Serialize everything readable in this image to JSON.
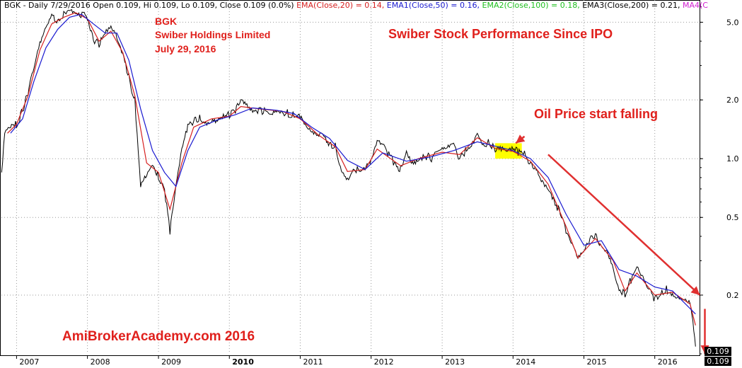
{
  "header": {
    "prefix": "BGK - Daily 7/29/2016 Open 0.109, Hi 0.109, Lo 0.109, Close 0.109 (0.0%)",
    "ema20": "EMA(Close,20) = 0.14,",
    "ema50": "EMA1(Close,50) = 0.16,",
    "ema100": "EMA2(Close,100) = 0.18,",
    "ema200": "EMA3(Close,200) = 0.21,",
    "ma": "MA4(C",
    "colors": {
      "ema20": "#d62020",
      "ema50": "#1a1ad0",
      "ema100": "#20c020",
      "ema200": "#000000",
      "ma": "#d020d0"
    }
  },
  "labels": {
    "ticker": "BGK",
    "company": "Swiber Holdings Limited",
    "date": "July 29, 2016",
    "title": "Swiber Stock Performance Since IPO",
    "annotation": "Oil Price start falling",
    "watermark": "AmiBrokerAcademy.com  2016"
  },
  "last_price": [
    "0.109",
    "0.109"
  ],
  "chart_data": {
    "type": "line",
    "title": "Swiber Stock Performance Since IPO",
    "y_scale": "log",
    "ylim": [
      0.1,
      6.5
    ],
    "y_ticks": [
      {
        "value": 0.2,
        "label": "0.2"
      },
      {
        "value": 0.5,
        "label": "0.5"
      },
      {
        "value": 1.0,
        "label": "1.0"
      },
      {
        "value": 2.0,
        "label": "2.0"
      },
      {
        "value": 5.0,
        "label": "5.0"
      }
    ],
    "xlim": [
      "2006-10-15",
      "2016-08-15"
    ],
    "x_ticks": [
      "2007",
      "2008",
      "2009",
      "2010",
      "2011",
      "2012",
      "2013",
      "2014",
      "2015",
      "2016"
    ],
    "grid": true,
    "highlight": {
      "start": "2013-10-01",
      "end": "2014-02-15",
      "color": "#ffff00"
    },
    "series": [
      {
        "role": "price",
        "color": "#000000",
        "points": [
          [
            "2006-10-16",
            0.85
          ],
          [
            "2006-11-01",
            1.4
          ],
          [
            "2006-12-01",
            1.5
          ],
          [
            "2007-01-01",
            1.5
          ],
          [
            "2007-02-01",
            1.75
          ],
          [
            "2007-03-01",
            2.2
          ],
          [
            "2007-04-01",
            2.9
          ],
          [
            "2007-05-01",
            3.8
          ],
          [
            "2007-06-01",
            4.6
          ],
          [
            "2007-07-01",
            5.3
          ],
          [
            "2007-08-01",
            5.0
          ],
          [
            "2007-09-01",
            5.6
          ],
          [
            "2007-10-01",
            6.0
          ],
          [
            "2007-11-01",
            5.7
          ],
          [
            "2008-01-01",
            5.3
          ],
          [
            "2008-02-01",
            4.1
          ],
          [
            "2008-03-01",
            3.9
          ],
          [
            "2008-04-01",
            4.3
          ],
          [
            "2008-05-01",
            4.7
          ],
          [
            "2008-06-01",
            4.1
          ],
          [
            "2008-07-01",
            3.3
          ],
          [
            "2008-08-01",
            2.6
          ],
          [
            "2008-09-01",
            2.0
          ],
          [
            "2008-10-01",
            0.75
          ],
          [
            "2008-11-01",
            0.85
          ],
          [
            "2008-12-01",
            0.95
          ],
          [
            "2009-01-01",
            0.8
          ],
          [
            "2009-02-01",
            0.7
          ],
          [
            "2009-03-01",
            0.42
          ],
          [
            "2009-04-01",
            0.7
          ],
          [
            "2009-05-01",
            1.1
          ],
          [
            "2009-06-01",
            1.45
          ],
          [
            "2009-07-01",
            1.55
          ],
          [
            "2009-08-01",
            1.6
          ],
          [
            "2009-09-01",
            1.55
          ],
          [
            "2009-10-01",
            1.6
          ],
          [
            "2009-11-01",
            1.6
          ],
          [
            "2009-12-01",
            1.7
          ],
          [
            "2010-01-01",
            1.65
          ],
          [
            "2010-02-01",
            1.75
          ],
          [
            "2010-03-01",
            1.95
          ],
          [
            "2010-04-01",
            1.85
          ],
          [
            "2010-05-01",
            1.7
          ],
          [
            "2010-06-01",
            1.8
          ],
          [
            "2010-07-01",
            1.75
          ],
          [
            "2010-08-01",
            1.75
          ],
          [
            "2010-09-01",
            1.8
          ],
          [
            "2010-10-01",
            1.75
          ],
          [
            "2010-11-01",
            1.7
          ],
          [
            "2010-12-01",
            1.65
          ],
          [
            "2011-01-01",
            1.6
          ],
          [
            "2011-02-01",
            1.45
          ],
          [
            "2011-03-01",
            1.35
          ],
          [
            "2011-04-01",
            1.3
          ],
          [
            "2011-05-01",
            1.3
          ],
          [
            "2011-06-01",
            1.2
          ],
          [
            "2011-07-01",
            1.15
          ],
          [
            "2011-08-01",
            0.9
          ],
          [
            "2011-09-01",
            0.8
          ],
          [
            "2011-10-01",
            0.9
          ],
          [
            "2011-11-01",
            0.87
          ],
          [
            "2011-12-01",
            0.88
          ],
          [
            "2012-01-01",
            0.95
          ],
          [
            "2012-02-01",
            1.2
          ],
          [
            "2012-03-01",
            1.15
          ],
          [
            "2012-04-01",
            1.05
          ],
          [
            "2012-05-01",
            0.95
          ],
          [
            "2012-06-01",
            0.88
          ],
          [
            "2012-07-01",
            1.1
          ],
          [
            "2012-08-01",
            0.97
          ],
          [
            "2012-09-01",
            1.0
          ],
          [
            "2012-10-01",
            1.05
          ],
          [
            "2012-11-01",
            1.0
          ],
          [
            "2012-12-01",
            1.05
          ],
          [
            "2013-01-01",
            1.1
          ],
          [
            "2013-02-01",
            1.12
          ],
          [
            "2013-03-01",
            1.15
          ],
          [
            "2013-04-01",
            1.0
          ],
          [
            "2013-05-01",
            1.1
          ],
          [
            "2013-06-01",
            1.2
          ],
          [
            "2013-07-01",
            1.35
          ],
          [
            "2013-08-01",
            1.2
          ],
          [
            "2013-09-01",
            1.2
          ],
          [
            "2013-10-01",
            1.12
          ],
          [
            "2013-11-01",
            1.1
          ],
          [
            "2013-12-01",
            1.08
          ],
          [
            "2014-01-01",
            1.1
          ],
          [
            "2014-02-01",
            1.08
          ],
          [
            "2014-03-01",
            1.05
          ],
          [
            "2014-04-01",
            0.95
          ],
          [
            "2014-05-01",
            0.9
          ],
          [
            "2014-06-01",
            0.78
          ],
          [
            "2014-07-01",
            0.72
          ],
          [
            "2014-08-01",
            0.62
          ],
          [
            "2014-09-01",
            0.52
          ],
          [
            "2014-10-01",
            0.42
          ],
          [
            "2014-11-01",
            0.36
          ],
          [
            "2014-12-01",
            0.3
          ],
          [
            "2015-01-01",
            0.33
          ],
          [
            "2015-02-01",
            0.39
          ],
          [
            "2015-03-01",
            0.4
          ],
          [
            "2015-04-01",
            0.36
          ],
          [
            "2015-05-01",
            0.34
          ],
          [
            "2015-06-01",
            0.28
          ],
          [
            "2015-07-01",
            0.22
          ],
          [
            "2015-08-01",
            0.2
          ],
          [
            "2015-09-01",
            0.24
          ],
          [
            "2015-10-01",
            0.27
          ],
          [
            "2015-11-01",
            0.24
          ],
          [
            "2015-12-01",
            0.21
          ],
          [
            "2016-01-01",
            0.19
          ],
          [
            "2016-02-01",
            0.2
          ],
          [
            "2016-03-01",
            0.215
          ],
          [
            "2016-04-01",
            0.205
          ],
          [
            "2016-05-01",
            0.2
          ],
          [
            "2016-06-01",
            0.195
          ],
          [
            "2016-07-01",
            0.185
          ],
          [
            "2016-07-15",
            0.15
          ],
          [
            "2016-07-29",
            0.109
          ]
        ]
      },
      {
        "role": "ema20",
        "name": "EMA(Close,20)",
        "color": "#d62020",
        "points": [
          [
            "2006-11-15",
            1.35
          ],
          [
            "2007-01-01",
            1.5
          ],
          [
            "2007-03-01",
            2.1
          ],
          [
            "2007-05-01",
            3.6
          ],
          [
            "2007-07-01",
            4.9
          ],
          [
            "2007-09-01",
            5.3
          ],
          [
            "2007-11-01",
            5.6
          ],
          [
            "2008-01-01",
            5.2
          ],
          [
            "2008-03-01",
            4.0
          ],
          [
            "2008-05-01",
            4.5
          ],
          [
            "2008-07-01",
            3.5
          ],
          [
            "2008-09-01",
            2.1
          ],
          [
            "2008-11-01",
            0.95
          ],
          [
            "2009-01-01",
            0.85
          ],
          [
            "2009-03-01",
            0.55
          ],
          [
            "2009-05-01",
            0.95
          ],
          [
            "2009-07-01",
            1.45
          ],
          [
            "2009-10-01",
            1.6
          ],
          [
            "2010-01-01",
            1.65
          ],
          [
            "2010-03-01",
            1.85
          ],
          [
            "2010-06-01",
            1.8
          ],
          [
            "2010-10-01",
            1.75
          ],
          [
            "2011-01-01",
            1.6
          ],
          [
            "2011-04-01",
            1.33
          ],
          [
            "2011-07-01",
            1.15
          ],
          [
            "2011-09-01",
            0.86
          ],
          [
            "2011-12-01",
            0.88
          ],
          [
            "2012-02-01",
            1.12
          ],
          [
            "2012-06-01",
            0.92
          ],
          [
            "2012-09-01",
            1.0
          ],
          [
            "2013-01-01",
            1.08
          ],
          [
            "2013-04-01",
            1.05
          ],
          [
            "2013-07-01",
            1.28
          ],
          [
            "2013-10-01",
            1.13
          ],
          [
            "2014-01-01",
            1.09
          ],
          [
            "2014-04-01",
            0.97
          ],
          [
            "2014-07-01",
            0.74
          ],
          [
            "2014-10-01",
            0.45
          ],
          [
            "2014-12-01",
            0.31
          ],
          [
            "2015-03-01",
            0.39
          ],
          [
            "2015-06-01",
            0.3
          ],
          [
            "2015-08-01",
            0.21
          ],
          [
            "2015-10-01",
            0.26
          ],
          [
            "2016-01-01",
            0.2
          ],
          [
            "2016-04-01",
            0.207
          ],
          [
            "2016-07-01",
            0.18
          ],
          [
            "2016-07-29",
            0.14
          ]
        ]
      },
      {
        "role": "ema50",
        "name": "EMA1(Close,50)",
        "color": "#1a1ad0",
        "points": [
          [
            "2006-12-01",
            1.35
          ],
          [
            "2007-02-01",
            1.6
          ],
          [
            "2007-04-01",
            2.5
          ],
          [
            "2007-06-01",
            3.7
          ],
          [
            "2007-08-01",
            4.6
          ],
          [
            "2007-10-01",
            5.3
          ],
          [
            "2007-12-01",
            5.5
          ],
          [
            "2008-02-01",
            4.9
          ],
          [
            "2008-04-01",
            4.4
          ],
          [
            "2008-06-01",
            4.4
          ],
          [
            "2008-08-01",
            3.2
          ],
          [
            "2008-10-01",
            1.8
          ],
          [
            "2008-12-01",
            1.1
          ],
          [
            "2009-02-01",
            0.85
          ],
          [
            "2009-04-01",
            0.72
          ],
          [
            "2009-06-01",
            1.1
          ],
          [
            "2009-08-01",
            1.45
          ],
          [
            "2009-11-01",
            1.58
          ],
          [
            "2010-02-01",
            1.68
          ],
          [
            "2010-05-01",
            1.82
          ],
          [
            "2010-09-01",
            1.77
          ],
          [
            "2010-12-01",
            1.7
          ],
          [
            "2011-03-01",
            1.45
          ],
          [
            "2011-06-01",
            1.27
          ],
          [
            "2011-09-01",
            0.98
          ],
          [
            "2011-12-01",
            0.88
          ],
          [
            "2012-03-01",
            1.07
          ],
          [
            "2012-07-01",
            0.97
          ],
          [
            "2012-11-01",
            1.02
          ],
          [
            "2013-03-01",
            1.1
          ],
          [
            "2013-07-01",
            1.22
          ],
          [
            "2013-10-01",
            1.16
          ],
          [
            "2014-01-01",
            1.1
          ],
          [
            "2014-04-01",
            1.0
          ],
          [
            "2014-07-01",
            0.8
          ],
          [
            "2014-10-01",
            0.52
          ],
          [
            "2015-01-01",
            0.36
          ],
          [
            "2015-04-01",
            0.38
          ],
          [
            "2015-07-01",
            0.27
          ],
          [
            "2015-10-01",
            0.25
          ],
          [
            "2016-01-01",
            0.22
          ],
          [
            "2016-04-01",
            0.21
          ],
          [
            "2016-07-29",
            0.16
          ]
        ]
      }
    ],
    "annotations": [
      {
        "type": "arrow",
        "color": "#e03030",
        "from": [
          "2014-03-01",
          1.3
        ],
        "to": [
          "2014-01-15",
          1.2
        ]
      },
      {
        "type": "arrow",
        "color": "#e03030",
        "from": [
          "2014-07-01",
          1.05
        ],
        "to": [
          "2016-08-20",
          0.2
        ]
      },
      {
        "type": "arrow",
        "color": "#e03030",
        "from": [
          "2016-09-15",
          0.17
        ],
        "to": [
          "2016-09-15",
          0.1
        ]
      }
    ]
  }
}
